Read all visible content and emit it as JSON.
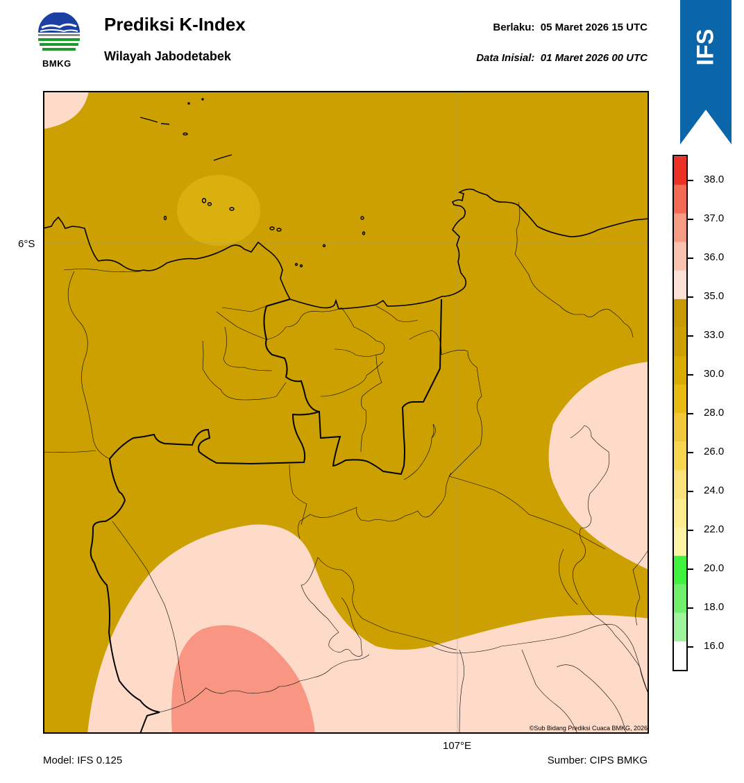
{
  "header": {
    "logo_text": "BMKG",
    "title": "Prediksi K-Index",
    "subtitle": "Wilayah Jabodetabek",
    "valid_label": "Berlaku:",
    "valid_value": "05 Maret 2026 15 UTC",
    "init_label": "Data Inisial:",
    "init_value": "01 Maret 2026 00 UTC"
  },
  "ribbon": {
    "label": "IFS",
    "color": "#0a66a9"
  },
  "map": {
    "lat_label": "6°S",
    "lon_label": "107°E",
    "credit": "©Sub Bidang Prediksi Cuaca BMKG, 2026",
    "colors": {
      "ocean_zone": "#cca000",
      "warm_patch": "#d9b00e",
      "low_zone": "#fedbc8",
      "lower_zone": "#f99683"
    }
  },
  "colorbar": {
    "ticks": [
      "38.0",
      "37.0",
      "36.0",
      "35.0",
      "33.0",
      "30.0",
      "28.0",
      "26.0",
      "24.0",
      "22.0",
      "20.0",
      "18.0",
      "16.0"
    ],
    "segments": [
      "#ffffff",
      "#9ef59d",
      "#70f06c",
      "#3ef23d",
      "#fff4a6",
      "#ffec8f",
      "#fce27a",
      "#f6d551",
      "#f0c83a",
      "#e8bb12",
      "#d9ac00",
      "#cca000",
      "#c69a00",
      "#fee1d4",
      "#fcc2b0",
      "#f89b85",
      "#f36a57",
      "#ec3226"
    ]
  },
  "footer": {
    "model": "Model: IFS 0.125",
    "source": "Sumber: CIPS BMKG"
  }
}
